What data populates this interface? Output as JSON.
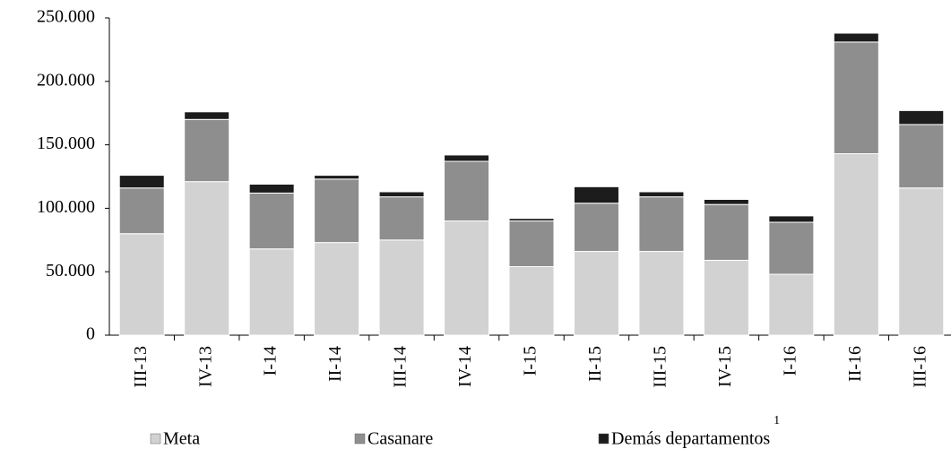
{
  "chart_data": {
    "type": "stacked_bar",
    "categories": [
      "III-13",
      "IV-13",
      "I-14",
      "II-14",
      "III-14",
      "IV-14",
      "I-15",
      "II-15",
      "III-15",
      "IV-15",
      "I-16",
      "II-16",
      "III-16"
    ],
    "series": [
      {
        "name": "Meta",
        "color": "#d2d2d2",
        "values": [
          80000,
          121000,
          68000,
          73000,
          75000,
          90000,
          54000,
          66000,
          66000,
          59000,
          48000,
          143000,
          116000
        ]
      },
      {
        "name": "Casanare",
        "color": "#8e8e8e",
        "values": [
          36000,
          49000,
          44000,
          50000,
          34000,
          47000,
          36000,
          38000,
          43000,
          44000,
          41000,
          88000,
          50000
        ]
      },
      {
        "name": "Demás departamentos",
        "color": "#1c1c1c",
        "values": [
          10000,
          6000,
          7000,
          3000,
          4000,
          5000,
          2000,
          13000,
          4000,
          4000,
          5000,
          7000,
          11000
        ]
      }
    ],
    "legend_footnote": "1",
    "ylim": [
      0,
      250000
    ],
    "yticks": [
      0,
      {
        "value": 50000,
        "label": "50.000"
      },
      {
        "value": 100000,
        "label": "100.000"
      },
      {
        "value": 150000,
        "label": "150.000"
      },
      {
        "value": 200000,
        "label": "200.000"
      },
      {
        "value": 250000,
        "label": "250.000"
      }
    ],
    "grid": false
  }
}
